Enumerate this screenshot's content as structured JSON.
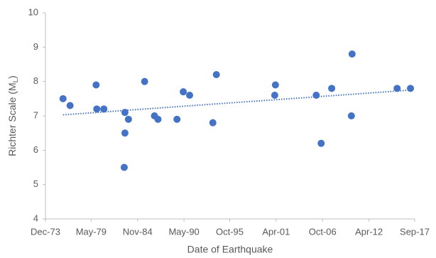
{
  "chart_data": {
    "type": "scatter",
    "x_label": "Date of Earthquake",
    "y_label": [
      "Richter Scale (M",
      "L",
      ")"
    ],
    "color": "#4472c4",
    "x": [
      "1976-01",
      "1976-11",
      "1979-12",
      "1980-01",
      "1980-11",
      "1983-05",
      "1983-05",
      "1983-04",
      "1983-10",
      "1985-09",
      "1986-11",
      "1987-04",
      "1989-07",
      "1990-04",
      "1991-01",
      "1993-10",
      "1994-03",
      "2001-03",
      "2001-02",
      "2006-01",
      "2006-08",
      "2007-11",
      "2010-04",
      "2010-03",
      "2015-08",
      "2017-03"
    ],
    "values": [
      7.5,
      7.3,
      7.9,
      7.2,
      7.2,
      7.1,
      6.5,
      5.5,
      6.9,
      8.0,
      7.0,
      6.9,
      6.9,
      7.7,
      7.6,
      6.8,
      8.2,
      7.9,
      7.6,
      7.6,
      6.2,
      7.8,
      8.8,
      7.0,
      7.8,
      7.8
    ],
    "trendline": {
      "x": [
        "1976-01",
        "2017-03"
      ],
      "values": [
        7.03,
        7.75
      ]
    },
    "xlim": [
      "1973-12",
      "2017-09"
    ],
    "xticks": [
      {
        "value": "1973-12",
        "label": "Dec-73"
      },
      {
        "value": "1979-05",
        "label": "May-79"
      },
      {
        "value": "1984-11",
        "label": "Nov-84"
      },
      {
        "value": "1990-05",
        "label": "May-90"
      },
      {
        "value": "1995-10",
        "label": "Oct-95"
      },
      {
        "value": "2001-04",
        "label": "Apr-01"
      },
      {
        "value": "2006-10",
        "label": "Oct-06"
      },
      {
        "value": "2012-04",
        "label": "Apr-12"
      },
      {
        "value": "2017-09",
        "label": "Sep-17"
      }
    ],
    "ylim": [
      4,
      10
    ],
    "yticks": [
      4,
      5,
      6,
      7,
      8,
      9,
      10
    ],
    "grid": false
  }
}
